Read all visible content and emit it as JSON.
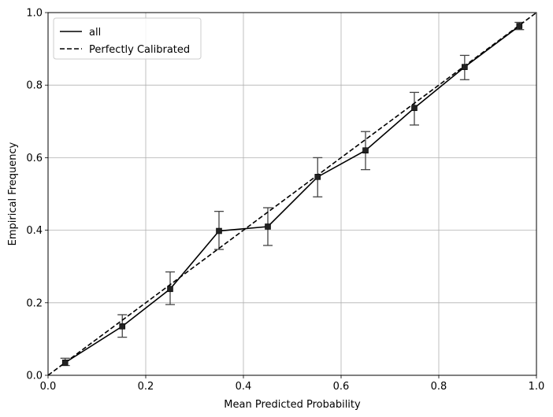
{
  "chart_data": {
    "type": "line",
    "title": "",
    "xlabel": "Mean Predicted Probability",
    "ylabel": "Empirical Frequency",
    "xlim": [
      0,
      1
    ],
    "ylim": [
      0,
      1
    ],
    "xticks": [
      "0.0",
      "0.2",
      "0.4",
      "0.6",
      "0.8",
      "1.0"
    ],
    "yticks": [
      "0.0",
      "0.2",
      "0.4",
      "0.6",
      "0.8",
      "1.0"
    ],
    "grid": true,
    "legend_position": "top-left",
    "series": [
      {
        "name": "all",
        "style": "solid",
        "marker": "square",
        "color": "#000000",
        "x": [
          0.035,
          0.152,
          0.25,
          0.35,
          0.45,
          0.552,
          0.65,
          0.75,
          0.853,
          0.965
        ],
        "y": [
          0.035,
          0.135,
          0.238,
          0.398,
          0.41,
          0.547,
          0.62,
          0.737,
          0.85,
          0.963
        ],
        "err_low": [
          0.027,
          0.105,
          0.195,
          0.347,
          0.358,
          0.492,
          0.567,
          0.69,
          0.815,
          0.953
        ],
        "err_high": [
          0.047,
          0.167,
          0.285,
          0.452,
          0.462,
          0.6,
          0.672,
          0.78,
          0.882,
          0.973
        ]
      },
      {
        "name": "Perfectly Calibrated",
        "style": "dashed",
        "color": "#000000",
        "x": [
          0,
          1
        ],
        "y": [
          0,
          1
        ]
      }
    ],
    "colors": {
      "grid": "#b0b0b0",
      "errorbar": "#444444"
    }
  }
}
